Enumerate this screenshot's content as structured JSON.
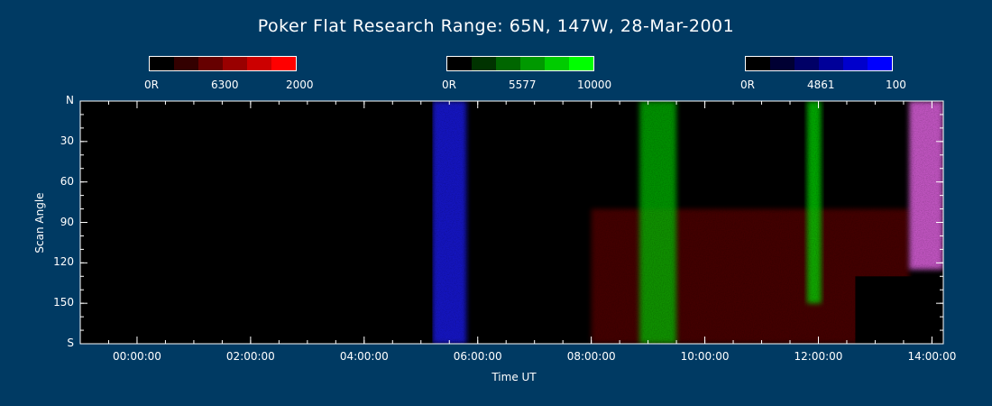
{
  "title": "Poker Flat Research Range: 65N, 147W, 28-Mar-2001",
  "colorbars": [
    {
      "name": "6300",
      "min_label": "0R",
      "mid_label": "6300",
      "max_label": "2000",
      "colors": [
        "#000000",
        "#330000",
        "#660000",
        "#990000",
        "#cc0000",
        "#ff0000"
      ]
    },
    {
      "name": "5577",
      "min_label": "0R",
      "mid_label": "5577",
      "max_label": "10000",
      "colors": [
        "#000000",
        "#003300",
        "#006600",
        "#009900",
        "#00cc00",
        "#00ff00"
      ]
    },
    {
      "name": "4861",
      "min_label": "0R",
      "mid_label": "4861",
      "max_label": "100",
      "colors": [
        "#000000",
        "#000033",
        "#000066",
        "#000099",
        "#0000cc",
        "#0000ff"
      ]
    }
  ],
  "chart_data": {
    "type": "heatmap",
    "title": "Poker Flat Research Range: 65N, 147W, 28-Mar-2001",
    "xlabel": "Time UT",
    "ylabel": "Scan Angle",
    "x_ticks": [
      "00:00:00",
      "02:00:00",
      "04:00:00",
      "06:00:00",
      "08:00:00",
      "10:00:00",
      "12:00:00",
      "14:00:00"
    ],
    "x_tick_hours": [
      0,
      2,
      4,
      6,
      8,
      10,
      12,
      14
    ],
    "xlim_hours": [
      -1.0,
      14.2
    ],
    "y_ticks": [
      "N",
      "30",
      "60",
      "90",
      "120",
      "150",
      "S"
    ],
    "y_tick_values": [
      0,
      30,
      60,
      90,
      120,
      150,
      180
    ],
    "ylim": [
      0,
      180
    ],
    "colors": {
      "no_data": "#000000",
      "red_6300": "#ff0000",
      "green_5577": "#00ff00",
      "blue_4861": "#0000ff"
    },
    "features": [
      {
        "desc": "blue 4861 emission band",
        "t_start": 5.2,
        "t_end": 5.8,
        "angle_start": 0,
        "angle_end": 180,
        "color": "#1a1aff"
      },
      {
        "desc": "diffuse red 6300",
        "t_start": 8.0,
        "t_end": 13.6,
        "angle_start": 80,
        "angle_end": 180,
        "color": "#5a0000"
      },
      {
        "desc": "green 5577 arc",
        "t_start": 8.85,
        "t_end": 9.5,
        "angle_start": 0,
        "angle_end": 180,
        "color": "#00c000"
      },
      {
        "desc": "green 5577 arc",
        "t_start": 11.8,
        "t_end": 12.05,
        "angle_start": 0,
        "angle_end": 150,
        "color": "#00dd00"
      },
      {
        "desc": "pink mixed emission",
        "t_start": 13.6,
        "t_end": 14.2,
        "angle_start": 0,
        "angle_end": 125,
        "color": "#ff70ff"
      },
      {
        "desc": "no data block",
        "t_start": 12.65,
        "t_end": 14.2,
        "angle_start": 130,
        "angle_end": 180,
        "color": "#000000"
      }
    ]
  }
}
